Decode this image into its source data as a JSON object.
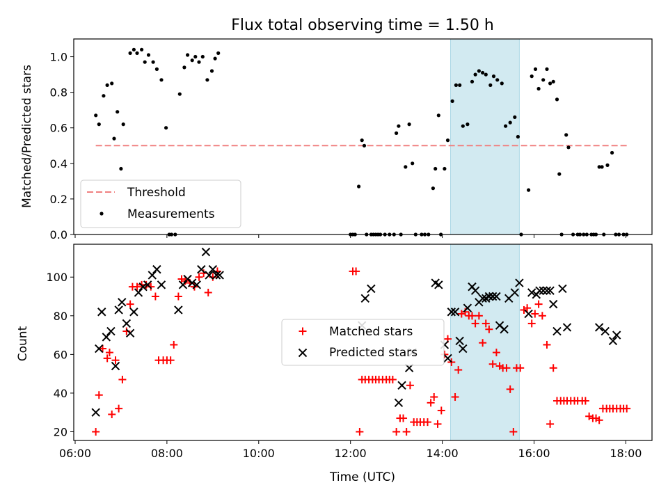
{
  "title": "Flux total observing time = 1.50 h",
  "colors": {
    "threshold": "#f08080",
    "measurement": "#000000",
    "matched": "#ff0000",
    "predicted": "#000000",
    "highlight": "#add8e6"
  },
  "chart_data": [
    {
      "type": "scatter",
      "panel": "top",
      "ylabel": "Matched/Predicted stars",
      "ylim": [
        0,
        1.1
      ],
      "yticks": [
        0.0,
        0.2,
        0.4,
        0.6,
        0.8,
        1.0
      ],
      "ytick_labels": [
        "0.0",
        "0.2",
        "0.4",
        "0.6",
        "0.8",
        "1.0"
      ],
      "xlim_hours": [
        5.97,
        18.57
      ],
      "highlight_hours": [
        14.18,
        15.68
      ],
      "threshold": {
        "name": "Threshold",
        "value": 0.5,
        "x_hours": [
          6.45,
          18.05
        ]
      },
      "legend": {
        "position": "lower-left",
        "entries": [
          "Threshold",
          "Measurements"
        ]
      },
      "series": [
        {
          "name": "Measurements",
          "x_hours": [
            6.45,
            6.52,
            6.62,
            6.7,
            6.8,
            6.85,
            6.92,
            7.0,
            7.05,
            7.2,
            7.28,
            7.35,
            7.45,
            7.52,
            7.6,
            7.7,
            7.78,
            7.88,
            7.98,
            8.05,
            8.1,
            8.18,
            8.28,
            8.38,
            8.45,
            8.55,
            8.62,
            8.7,
            8.78,
            8.88,
            8.98,
            9.05,
            9.12,
            12.0,
            12.05,
            12.1,
            12.18,
            12.25,
            12.3,
            12.35,
            12.45,
            12.5,
            12.55,
            12.6,
            12.65,
            12.75,
            12.85,
            12.95,
            13.0,
            13.05,
            13.1,
            13.2,
            13.28,
            13.35,
            13.42,
            13.55,
            13.62,
            13.7,
            13.8,
            13.85,
            13.92,
            13.97,
            14.05,
            14.12,
            14.22,
            14.3,
            14.38,
            14.45,
            14.55,
            14.65,
            14.72,
            14.8,
            14.88,
            14.95,
            15.05,
            15.12,
            15.2,
            15.3,
            15.38,
            15.48,
            15.58,
            15.65,
            15.72,
            15.88,
            15.95,
            16.03,
            16.1,
            16.2,
            16.28,
            16.35,
            16.42,
            16.5,
            16.55,
            16.6,
            16.7,
            16.75,
            16.85,
            16.95,
            17.0,
            17.08,
            17.15,
            17.25,
            17.3,
            17.35,
            17.42,
            17.48,
            17.52,
            17.6,
            17.7,
            17.78,
            17.85,
            17.95,
            18.02
          ],
          "values": [
            0.67,
            0.62,
            0.78,
            0.84,
            0.85,
            0.54,
            0.69,
            0.37,
            0.62,
            1.02,
            1.04,
            1.02,
            1.04,
            0.97,
            1.01,
            0.97,
            0.93,
            0.87,
            0.6,
            0.0,
            0.0,
            0.0,
            0.79,
            0.94,
            1.01,
            0.98,
            1.0,
            0.97,
            1.0,
            0.87,
            0.92,
            0.99,
            1.02,
            0.0,
            0.0,
            0.0,
            0.27,
            0.53,
            0.5,
            0.0,
            0.0,
            0.0,
            0.0,
            0.0,
            0.0,
            0.0,
            0.0,
            0.0,
            0.57,
            0.61,
            0.0,
            0.38,
            0.62,
            0.4,
            0.0,
            0.0,
            0.0,
            0.0,
            0.26,
            0.37,
            0.67,
            0.0,
            0.37,
            0.53,
            0.75,
            0.84,
            0.84,
            0.61,
            0.62,
            0.86,
            0.9,
            0.92,
            0.91,
            0.9,
            0.84,
            0.89,
            0.87,
            0.85,
            0.61,
            0.63,
            0.66,
            0.55,
            0.0,
            0.25,
            0.89,
            0.93,
            0.82,
            0.87,
            0.93,
            0.85,
            0.86,
            0.76,
            0.34,
            0.0,
            0.56,
            0.49,
            0.0,
            0.0,
            0.0,
            0.0,
            0.0,
            0.0,
            0.0,
            0.0,
            0.38,
            0.38,
            0.0,
            0.39,
            0.46,
            0.0,
            0.0,
            0.0,
            0.0
          ]
        }
      ]
    },
    {
      "type": "scatter",
      "panel": "bottom",
      "ylabel": "Count",
      "xlabel": "Time (UTC)",
      "ylim": [
        15.5,
        117
      ],
      "yticks": [
        20,
        40,
        60,
        80,
        100
      ],
      "ytick_labels": [
        "20",
        "40",
        "60",
        "80",
        "100"
      ],
      "xlim_hours": [
        5.97,
        18.57
      ],
      "xticks_hours": [
        6,
        8,
        10,
        12,
        14,
        16,
        18
      ],
      "xtick_labels": [
        "06:00",
        "08:00",
        "10:00",
        "12:00",
        "14:00",
        "16:00",
        "18:00"
      ],
      "highlight_hours": [
        14.18,
        15.68
      ],
      "legend": {
        "position": "center",
        "entries": [
          "Matched stars",
          "Predicted stars"
        ]
      },
      "series": [
        {
          "name": "Matched stars",
          "marker": "plus",
          "x_hours": [
            6.45,
            6.52,
            6.6,
            6.7,
            6.75,
            6.8,
            6.88,
            6.95,
            7.03,
            7.12,
            7.2,
            7.25,
            7.35,
            7.45,
            7.55,
            7.65,
            7.75,
            7.82,
            7.92,
            8.0,
            8.08,
            8.15,
            8.25,
            8.32,
            8.4,
            8.5,
            8.6,
            8.7,
            8.8,
            8.9,
            9.0,
            9.1,
            12.05,
            12.12,
            12.2,
            12.25,
            12.32,
            12.4,
            12.48,
            12.55,
            12.62,
            12.7,
            12.78,
            12.85,
            12.92,
            13.0,
            13.08,
            13.15,
            13.22,
            13.3,
            13.38,
            13.45,
            13.52,
            13.6,
            13.68,
            13.75,
            13.82,
            13.9,
            13.98,
            14.05,
            14.12,
            14.2,
            14.28,
            14.35,
            14.42,
            14.5,
            14.58,
            14.65,
            14.72,
            14.8,
            14.88,
            14.95,
            15.02,
            15.1,
            15.18,
            15.25,
            15.32,
            15.4,
            15.48,
            15.55,
            15.62,
            15.7,
            15.78,
            15.85,
            15.95,
            16.02,
            16.1,
            16.18,
            16.28,
            16.35,
            16.42,
            16.5,
            16.58,
            16.65,
            16.72,
            16.8,
            16.88,
            16.95,
            17.05,
            17.12,
            17.2,
            17.28,
            17.35,
            17.42,
            17.5,
            17.58,
            17.65,
            17.72,
            17.8,
            17.88,
            17.95,
            18.02
          ],
          "values": [
            20,
            39,
            63,
            58,
            61,
            29,
            57,
            32,
            47,
            72,
            86,
            95,
            95,
            96,
            96,
            95,
            90,
            57,
            57,
            57,
            57,
            65,
            90,
            99,
            98,
            97,
            95,
            100,
            102,
            92,
            100,
            103,
            103,
            103,
            20,
            47,
            47,
            47,
            47,
            47,
            47,
            47,
            47,
            47,
            47,
            20,
            27,
            27,
            20,
            44,
            25,
            25,
            25,
            25,
            25,
            35,
            38,
            24,
            31,
            60,
            68,
            56,
            38,
            52,
            81,
            82,
            80,
            80,
            76,
            80,
            66,
            76,
            73,
            55,
            61,
            54,
            53,
            53,
            42,
            20,
            53,
            53,
            83,
            84,
            76,
            81,
            86,
            80,
            65,
            24,
            53,
            36,
            36,
            36,
            36,
            36,
            36,
            36,
            36,
            36,
            28,
            27,
            27,
            26,
            32,
            32,
            32,
            32,
            32,
            32,
            32,
            32
          ]
        },
        {
          "name": "Predicted stars",
          "marker": "x",
          "x_hours": [
            6.45,
            6.52,
            6.58,
            6.68,
            6.78,
            6.88,
            6.95,
            7.02,
            7.12,
            7.2,
            7.28,
            7.38,
            7.48,
            7.58,
            7.68,
            7.78,
            7.88,
            8.25,
            8.35,
            8.45,
            8.55,
            8.65,
            8.75,
            8.85,
            8.92,
            9.0,
            9.08,
            9.15,
            12.25,
            12.32,
            12.45,
            13.05,
            13.12,
            13.28,
            13.35,
            13.85,
            13.92,
            14.05,
            14.12,
            14.2,
            14.28,
            14.38,
            14.45,
            14.55,
            14.65,
            14.72,
            14.8,
            14.88,
            14.95,
            15.02,
            15.1,
            15.18,
            15.25,
            15.35,
            15.45,
            15.58,
            15.68,
            15.88,
            15.95,
            16.05,
            16.12,
            16.2,
            16.28,
            16.35,
            16.42,
            16.5,
            16.62,
            16.72,
            17.42,
            17.55,
            17.72,
            17.8
          ],
          "values": [
            30,
            63,
            82,
            69,
            72,
            54,
            83,
            87,
            76,
            71,
            82,
            92,
            95,
            96,
            101,
            104,
            96,
            83,
            96,
            99,
            97,
            96,
            104,
            113,
            101,
            104,
            101,
            101,
            75,
            89,
            94,
            35,
            44,
            53,
            61,
            97,
            96,
            65,
            58,
            82,
            82,
            67,
            63,
            84,
            95,
            93,
            87,
            89,
            89,
            90,
            90,
            90,
            75,
            73,
            89,
            92,
            97,
            81,
            92,
            91,
            93,
            93,
            93,
            93,
            86,
            72,
            94,
            74,
            74,
            72,
            67,
            70
          ]
        }
      ]
    }
  ]
}
